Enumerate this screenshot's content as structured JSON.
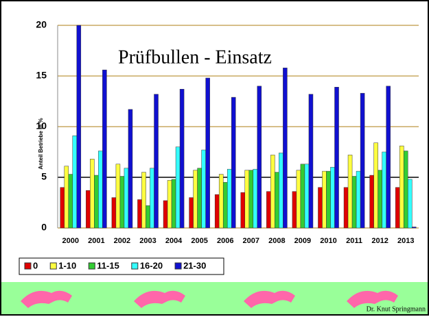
{
  "chart_data": {
    "type": "bar",
    "title": "Prüfbullen - Einsatz",
    "y_label": "Anteil Betriebe in %",
    "categories": [
      "2000",
      "2001",
      "2002",
      "2003",
      "2004",
      "2005",
      "2006",
      "2007",
      "2008",
      "2009",
      "2010",
      "2011",
      "2012",
      "2013"
    ],
    "series": [
      {
        "name": "0",
        "color": "#e00000",
        "values": [
          4.0,
          3.7,
          3.0,
          2.8,
          2.7,
          3.0,
          3.3,
          3.5,
          3.6,
          3.6,
          4.0,
          4.0,
          5.2,
          4.0
        ]
      },
      {
        "name": "1-10",
        "color": "#ffff40",
        "values": [
          6.1,
          6.8,
          6.3,
          5.5,
          4.7,
          5.7,
          5.3,
          5.7,
          7.2,
          5.7,
          5.6,
          7.2,
          8.4,
          8.1
        ]
      },
      {
        "name": "11-15",
        "color": "#33cc33",
        "values": [
          5.3,
          5.2,
          5.1,
          2.2,
          4.8,
          5.9,
          4.5,
          5.7,
          5.5,
          6.3,
          5.6,
          5.1,
          5.7,
          7.6
        ]
      },
      {
        "name": "16-20",
        "color": "#33ffff",
        "values": [
          9.1,
          7.6,
          5.9,
          5.9,
          8.0,
          7.7,
          5.8,
          5.8,
          7.4,
          6.3,
          6.0,
          5.6,
          7.5,
          4.8
        ]
      },
      {
        "name": "21-30",
        "color": "#1010d0",
        "values": [
          20.0,
          15.6,
          11.7,
          13.2,
          13.7,
          14.8,
          12.9,
          14.0,
          15.8,
          13.2,
          13.9,
          13.3,
          14.0,
          0.1
        ]
      }
    ],
    "ylim": [
      0,
      20
    ],
    "yticks": [
      0,
      5,
      10,
      15,
      20
    ],
    "grid": true,
    "footer": "Dr. Knut Springmann"
  }
}
